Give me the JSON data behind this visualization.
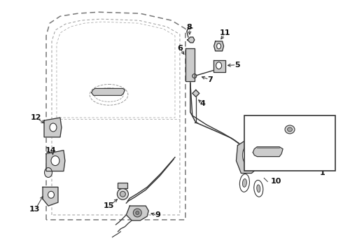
{
  "bg_color": "#ffffff",
  "line_color": "#333333",
  "label_color": "#111111",
  "fig_width": 4.9,
  "fig_height": 3.6,
  "dpi": 100
}
